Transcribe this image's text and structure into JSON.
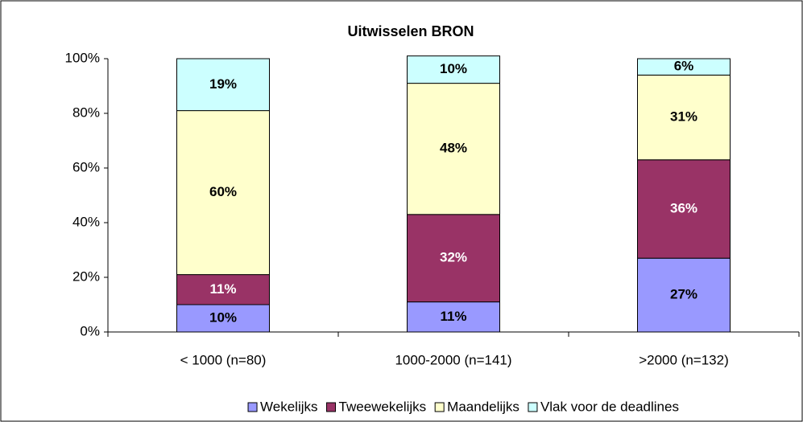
{
  "chart_data": {
    "type": "stacked_bar",
    "title": "Uitwisselen BRON",
    "categories": [
      "< 1000 (n=80)",
      "1000-2000 (n=141)",
      ">2000 (n=132)"
    ],
    "series": [
      {
        "name": "Wekelijks",
        "color": "#9999ff",
        "values": [
          10,
          11,
          27
        ],
        "value_labels": [
          "10%",
          "11%",
          "27%"
        ]
      },
      {
        "name": "Tweewekelijks",
        "color": "#993366",
        "values": [
          11,
          32,
          36
        ],
        "value_labels": [
          "11%",
          "32%",
          "36%"
        ]
      },
      {
        "name": "Maandelijks",
        "color": "#ffffcc",
        "values": [
          60,
          48,
          31
        ],
        "value_labels": [
          "60%",
          "48%",
          "31%"
        ]
      },
      {
        "name": "Vlak voor de deadlines",
        "color": "#ccffff",
        "values": [
          19,
          10,
          6
        ],
        "value_labels": [
          "19%",
          "10%",
          "6%"
        ]
      }
    ],
    "ylim": [
      0,
      100
    ],
    "yticks": [
      {
        "value": 0,
        "label": "0%"
      },
      {
        "value": 20,
        "label": "20%"
      },
      {
        "value": 40,
        "label": "40%"
      },
      {
        "value": 60,
        "label": "60%"
      },
      {
        "value": 80,
        "label": "80%"
      },
      {
        "value": 100,
        "label": "100%"
      }
    ],
    "legend": "bottom"
  }
}
